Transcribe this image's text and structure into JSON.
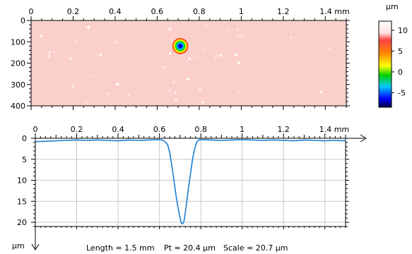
{
  "map_chart": {
    "type": "heatmap",
    "x_unit_label": "mm",
    "y_unit_label": "",
    "x_ticks": [
      0,
      0.2,
      0.4,
      0.6,
      0.8,
      1,
      1.2,
      1.4
    ],
    "x_tick_labels": [
      "0",
      "0.2",
      "0.4",
      "0.6",
      "0.8",
      "1",
      "1.2",
      "1.4 mm"
    ],
    "y_ticks": [
      0,
      100,
      200,
      300,
      400
    ],
    "y_tick_labels": [
      "0",
      "100",
      "200",
      "300",
      "400"
    ],
    "xlim": [
      0,
      1.5
    ],
    "ylim": [
      0,
      400
    ],
    "feature": {
      "x_mm": 0.71,
      "y": 120,
      "radius_mm": 0.055
    },
    "background_color": "#fbd0cb"
  },
  "colorbar": {
    "unit_label": "µm",
    "tick_labels": [
      "10",
      "5",
      "0",
      "-5"
    ],
    "ticks": [
      10,
      5,
      0,
      -5
    ],
    "range": [
      -8.5,
      12.2
    ],
    "stops": [
      "#ffffff",
      "#ff2020",
      "#ff9a00",
      "#ffff00",
      "#00d000",
      "#00c8ff",
      "#0000ff",
      "#000044"
    ]
  },
  "chart_data": {
    "type": "line",
    "title": "",
    "xlabel": "mm",
    "ylabel": "µm",
    "xlim": [
      0,
      1.5
    ],
    "ylim": [
      21,
      0
    ],
    "x_ticks": [
      0,
      0.2,
      0.4,
      0.6,
      0.8,
      1,
      1.2,
      1.4
    ],
    "x_tick_labels": [
      "0",
      "0.2",
      "0.4",
      "0.6",
      "0.8",
      "1",
      "1.2",
      "1.4 mm"
    ],
    "y_ticks": [
      0,
      5,
      10,
      15,
      20
    ],
    "y_tick_labels": [
      "0",
      "5",
      "10",
      "15",
      "20"
    ],
    "grid": true,
    "line_color": "#1a7fd4",
    "series": [
      {
        "x": [
          0,
          0.05,
          0.1,
          0.15,
          0.2,
          0.25,
          0.3,
          0.35,
          0.4,
          0.45,
          0.5,
          0.55,
          0.6,
          0.62,
          0.64,
          0.65,
          0.66,
          0.67,
          0.68,
          0.69,
          0.7,
          0.705,
          0.71,
          0.715,
          0.72,
          0.73,
          0.74,
          0.75,
          0.76,
          0.77,
          0.78,
          0.79,
          0.8,
          0.85,
          0.9,
          0.95,
          1.0,
          1.05,
          1.1,
          1.15,
          1.2,
          1.25,
          1.3,
          1.35,
          1.4,
          1.45,
          1.5
        ],
        "y": [
          0.8,
          0.7,
          0.6,
          0.5,
          0.4,
          0.5,
          0.4,
          0.5,
          0.6,
          0.4,
          0.5,
          0.4,
          0.3,
          0.5,
          1.5,
          3.5,
          6.5,
          10.0,
          13.5,
          16.5,
          19.0,
          20.1,
          20.4,
          20.2,
          19.5,
          16.0,
          12.0,
          8.5,
          5.0,
          2.5,
          0.9,
          0.4,
          0.3,
          0.4,
          0.5,
          0.4,
          0.3,
          0.4,
          0.5,
          0.4,
          0.5,
          0.6,
          0.4,
          0.5,
          0.6,
          0.5,
          0.6
        ]
      }
    ]
  },
  "footer": {
    "length_text": "Length = 1.5 mm",
    "pt_text": "Pt = 20.4 µm",
    "scale_text": "Scale = 20.7 µm"
  }
}
